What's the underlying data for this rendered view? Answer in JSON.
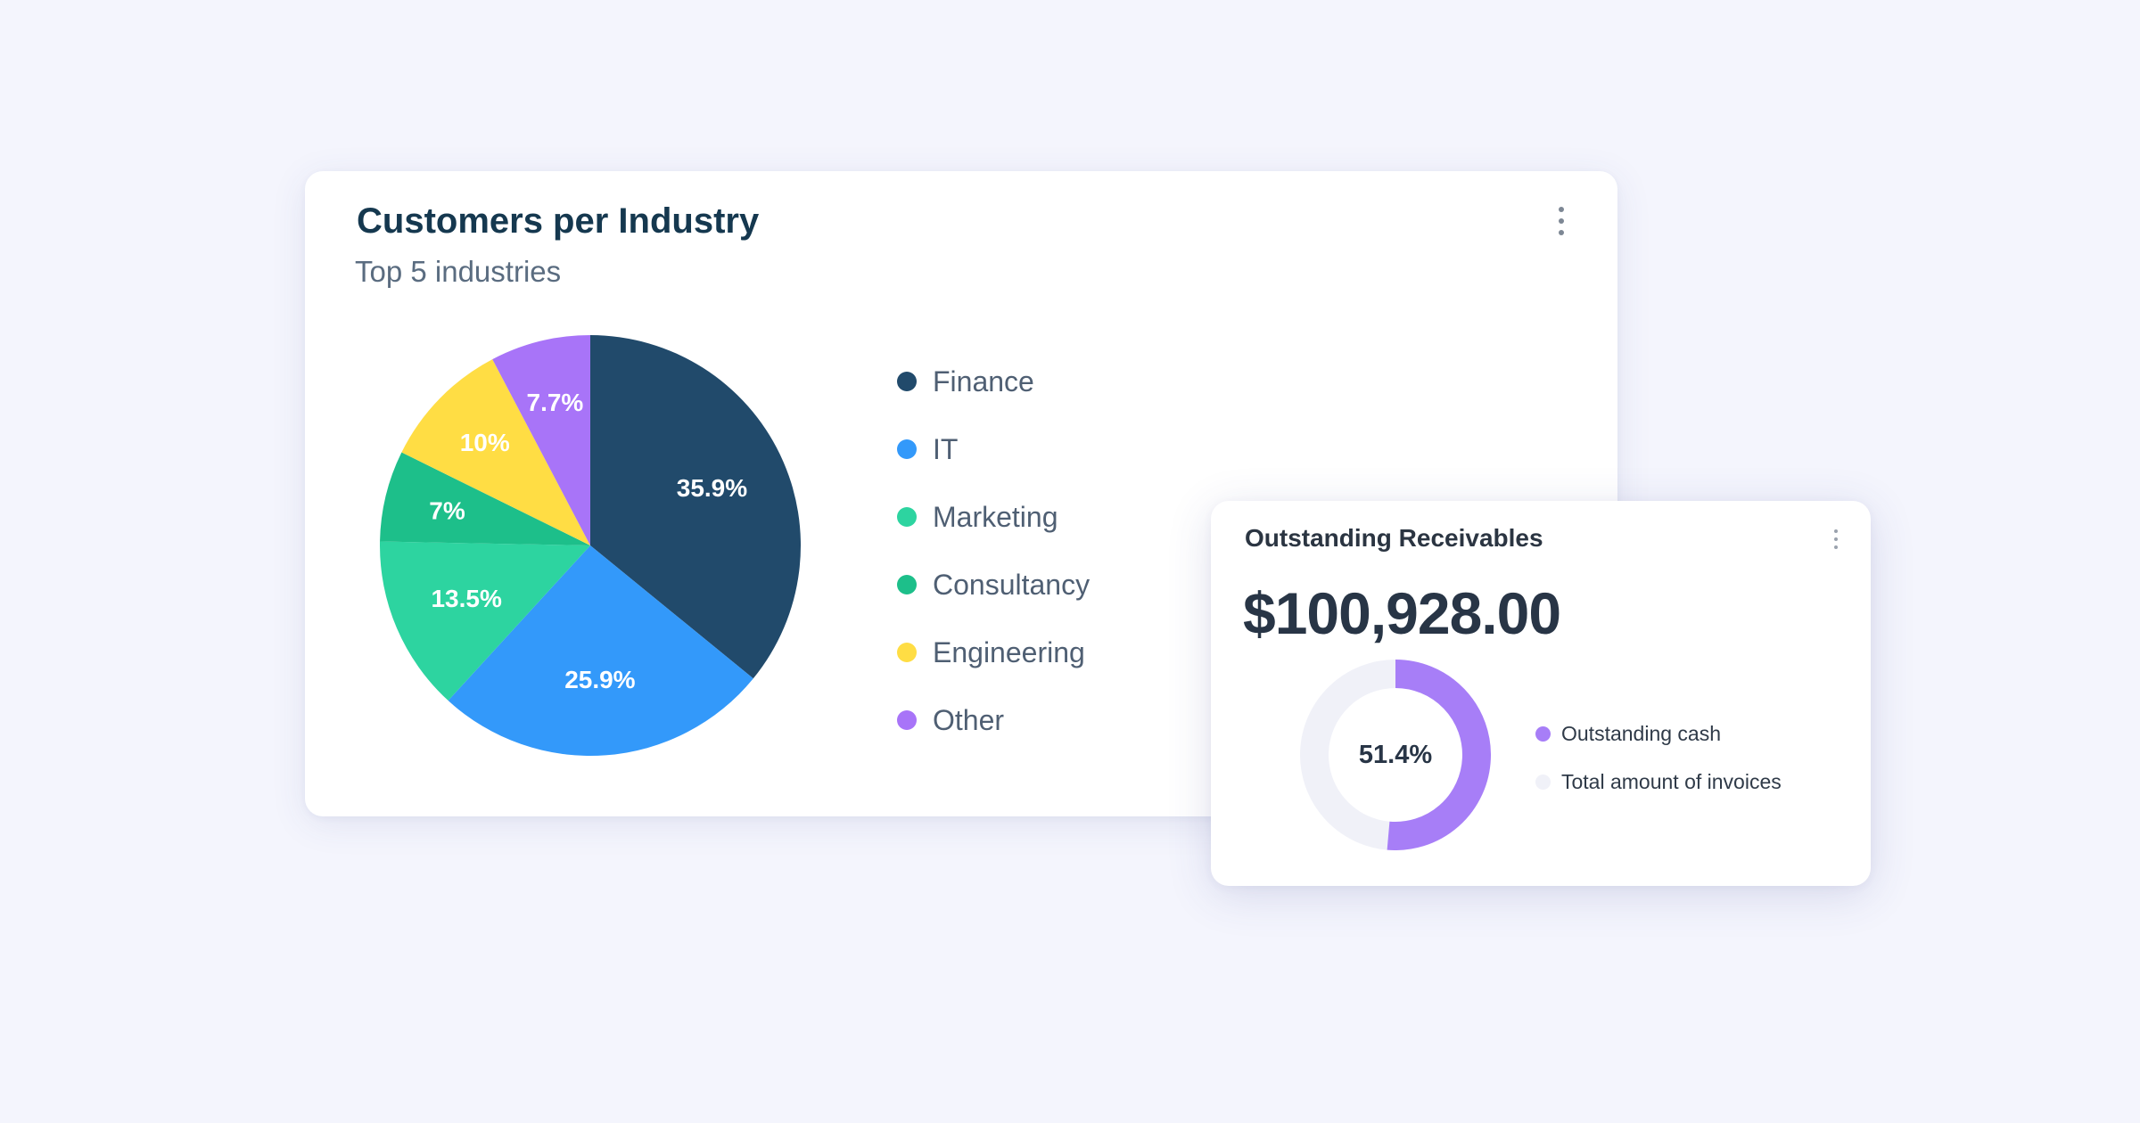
{
  "colors": {
    "background": "#f4f5fd",
    "card": "#ffffff",
    "title": "#15384f",
    "subtitle": "#5a6c80",
    "kebab": "#7d8794"
  },
  "industry_card": {
    "title": "Customers per Industry",
    "subtitle": "Top 5 industries",
    "menu_icon": "kebab-menu-icon"
  },
  "receivables_card": {
    "title": "Outstanding Receivables",
    "amount": "$100,928.00",
    "menu_icon": "kebab-menu-icon"
  },
  "chart_data": [
    {
      "type": "pie",
      "title": "Customers per Industry",
      "subtitle": "Top 5 industries",
      "legend_position": "right",
      "slices": [
        {
          "name": "Finance",
          "value": 35.9,
          "label": "35.9%",
          "color": "#214a6b",
          "label_color": "#ffffff"
        },
        {
          "name": "IT",
          "value": 25.9,
          "label": "25.9%",
          "color": "#3399fa",
          "label_color": "#ffffff"
        },
        {
          "name": "Marketing",
          "value": 13.5,
          "label": "13.5%",
          "color": "#2dd4a0",
          "label_color": "#ffffff"
        },
        {
          "name": "Consultancy",
          "value": 7,
          "label": "7%",
          "color": "#1dbf8a",
          "label_color": "#ffffff"
        },
        {
          "name": "Engineering",
          "value": 10,
          "label": "10%",
          "color": "#ffdd44",
          "label_color": "#ffffff"
        },
        {
          "name": "Other",
          "value": 7.7,
          "label": "7.7%",
          "color": "#a874f8",
          "label_color": "#ffffff"
        }
      ]
    },
    {
      "type": "pie",
      "variant": "donut",
      "title": "Outstanding Receivables",
      "center_label": "51.4%",
      "legend_position": "right",
      "slices": [
        {
          "name": "Outstanding cash",
          "value": 51.4,
          "color": "#a77ef7"
        },
        {
          "name": "Total amount of invoices",
          "value": 48.6,
          "color": "#f0f1f8"
        }
      ]
    }
  ]
}
